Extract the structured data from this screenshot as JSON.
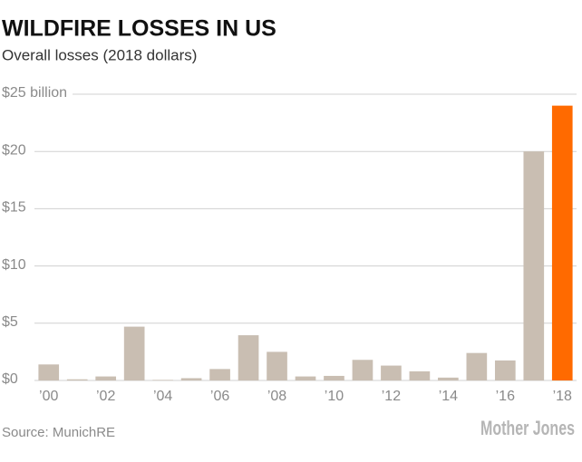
{
  "chart_data": {
    "type": "bar",
    "title": "WILDFIRE LOSSES IN US",
    "subtitle": "Overall losses (2018 dollars)",
    "source": "Source: MunichRE",
    "logo": "Mother Jones",
    "categories": [
      "’00",
      null,
      "’02",
      null,
      "’04",
      null,
      "’06",
      null,
      "’08",
      null,
      "’10",
      null,
      "’12",
      null,
      "’14",
      null,
      "’16",
      null,
      "’18"
    ],
    "values": [
      1.4,
      0.1,
      0.35,
      4.7,
      0.05,
      0.2,
      1.0,
      3.95,
      2.5,
      0.35,
      0.4,
      1.8,
      1.3,
      0.8,
      0.25,
      2.4,
      1.75,
      20,
      24
    ],
    "colors": [
      "#c9beb2",
      "#c9beb2",
      "#c9beb2",
      "#c9beb2",
      "#c9beb2",
      "#c9beb2",
      "#c9beb2",
      "#c9beb2",
      "#c9beb2",
      "#c9beb2",
      "#c9beb2",
      "#c9beb2",
      "#c9beb2",
      "#c9beb2",
      "#c9beb2",
      "#c9beb2",
      "#c9beb2",
      "#c9beb2",
      "#ff6a00"
    ],
    "ylim": [
      0,
      25
    ],
    "yticks": [
      {
        "value": 0,
        "label": "$0"
      },
      {
        "value": 5,
        "label": "$5"
      },
      {
        "value": 10,
        "label": "$10"
      },
      {
        "value": 15,
        "label": "$15"
      },
      {
        "value": 20,
        "label": "$20"
      },
      {
        "value": 25,
        "label": "$25 billion"
      }
    ],
    "grid": true
  }
}
